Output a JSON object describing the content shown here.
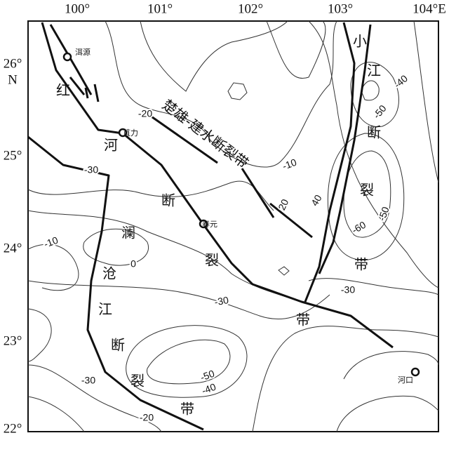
{
  "axes": {
    "top": [
      "100°",
      "101°",
      "102°",
      "103°",
      "104°E"
    ],
    "left": [
      "26°",
      "N",
      "25°",
      "24°",
      "23°",
      "22°"
    ]
  },
  "places": [
    "洱源",
    "苴力",
    "春元",
    "河口"
  ],
  "faults": [
    {
      "chars": [
        "红",
        "河",
        "断",
        "裂",
        "带"
      ]
    },
    {
      "chars": [
        "澜",
        "沧",
        "江",
        "断",
        "裂",
        "带"
      ]
    },
    {
      "chars": [
        "小",
        "江",
        "断",
        "裂",
        "带"
      ]
    }
  ],
  "fault_label": "楚雄-建水断裂带",
  "contour_labels": [
    -20,
    -10,
    20,
    40,
    -40,
    -50,
    -50,
    -60,
    -30,
    -10,
    0,
    -30,
    -30,
    -50,
    -40,
    -30,
    -20
  ]
}
